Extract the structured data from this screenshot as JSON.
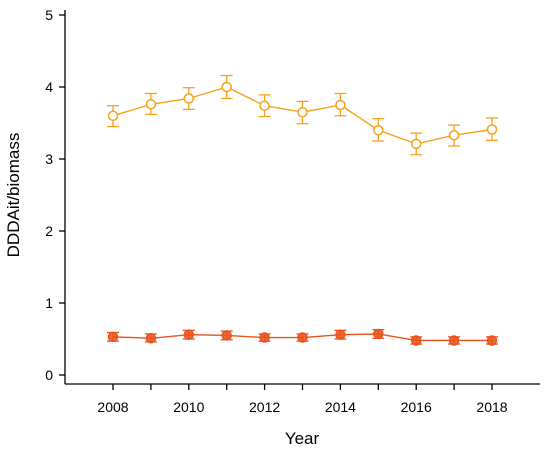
{
  "chart_data": {
    "type": "line",
    "title": "",
    "xlabel": "Year",
    "ylabel": "DDDAit/biomass",
    "x": [
      2008,
      2009,
      2010,
      2011,
      2012,
      2013,
      2014,
      2015,
      2016,
      2017,
      2018
    ],
    "xlim": [
      2008,
      2018
    ],
    "ylim": [
      0,
      5
    ],
    "x_ticks": [
      2008,
      2010,
      2012,
      2014,
      2016,
      2018
    ],
    "y_ticks": [
      0,
      1,
      2,
      3,
      4,
      5
    ],
    "grid": false,
    "series": [
      {
        "marker": "open-circle",
        "color": "#f5a21e",
        "values": [
          3.6,
          3.76,
          3.84,
          4.0,
          3.74,
          3.65,
          3.75,
          3.4,
          3.21,
          3.33,
          3.41
        ],
        "err_low": [
          3.45,
          3.62,
          3.69,
          3.84,
          3.59,
          3.49,
          3.6,
          3.25,
          3.06,
          3.18,
          3.26
        ],
        "err_high": [
          3.74,
          3.91,
          3.99,
          4.16,
          3.89,
          3.8,
          3.91,
          3.56,
          3.36,
          3.47,
          3.57
        ]
      },
      {
        "marker": "filled-circle",
        "color": "#e8521c",
        "values": [
          0.53,
          0.51,
          0.56,
          0.55,
          0.52,
          0.52,
          0.56,
          0.57,
          0.48,
          0.48,
          0.48
        ],
        "err_low": [
          0.47,
          0.46,
          0.5,
          0.49,
          0.47,
          0.47,
          0.5,
          0.51,
          0.43,
          0.43,
          0.43
        ],
        "err_high": [
          0.59,
          0.57,
          0.62,
          0.61,
          0.57,
          0.57,
          0.62,
          0.63,
          0.53,
          0.53,
          0.53
        ]
      }
    ]
  }
}
